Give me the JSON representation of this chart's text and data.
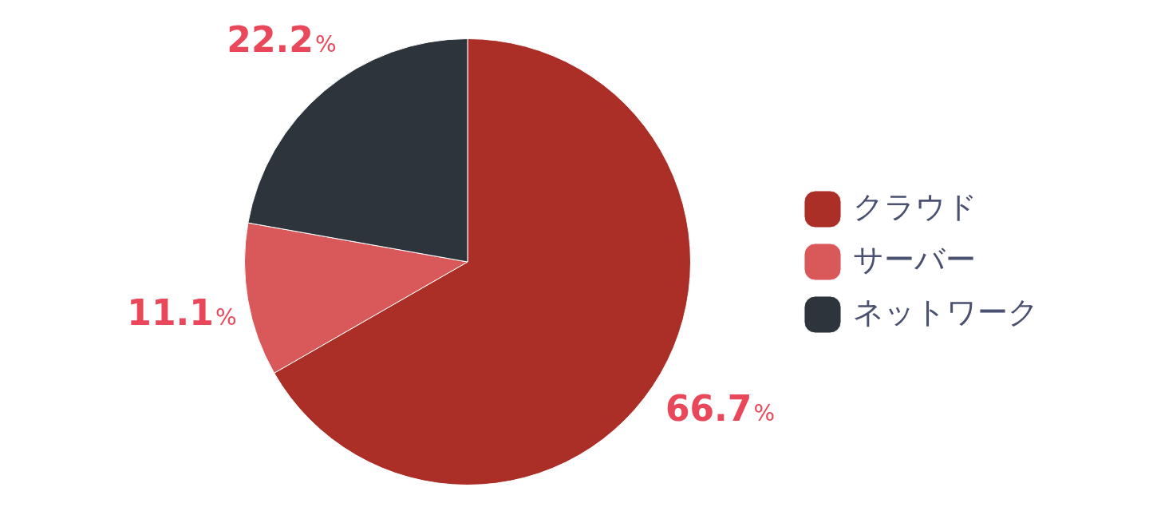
{
  "chart_data": {
    "type": "pie",
    "categories": [
      "クラウド",
      "サーバー",
      "ネットワーク"
    ],
    "values": [
      66.7,
      11.1,
      22.2
    ],
    "colors": [
      "#ab2e27",
      "#d9585a",
      "#2d343c"
    ],
    "value_labels": [
      "66.7%",
      "11.1%",
      "22.2%"
    ],
    "legend": "right"
  }
}
